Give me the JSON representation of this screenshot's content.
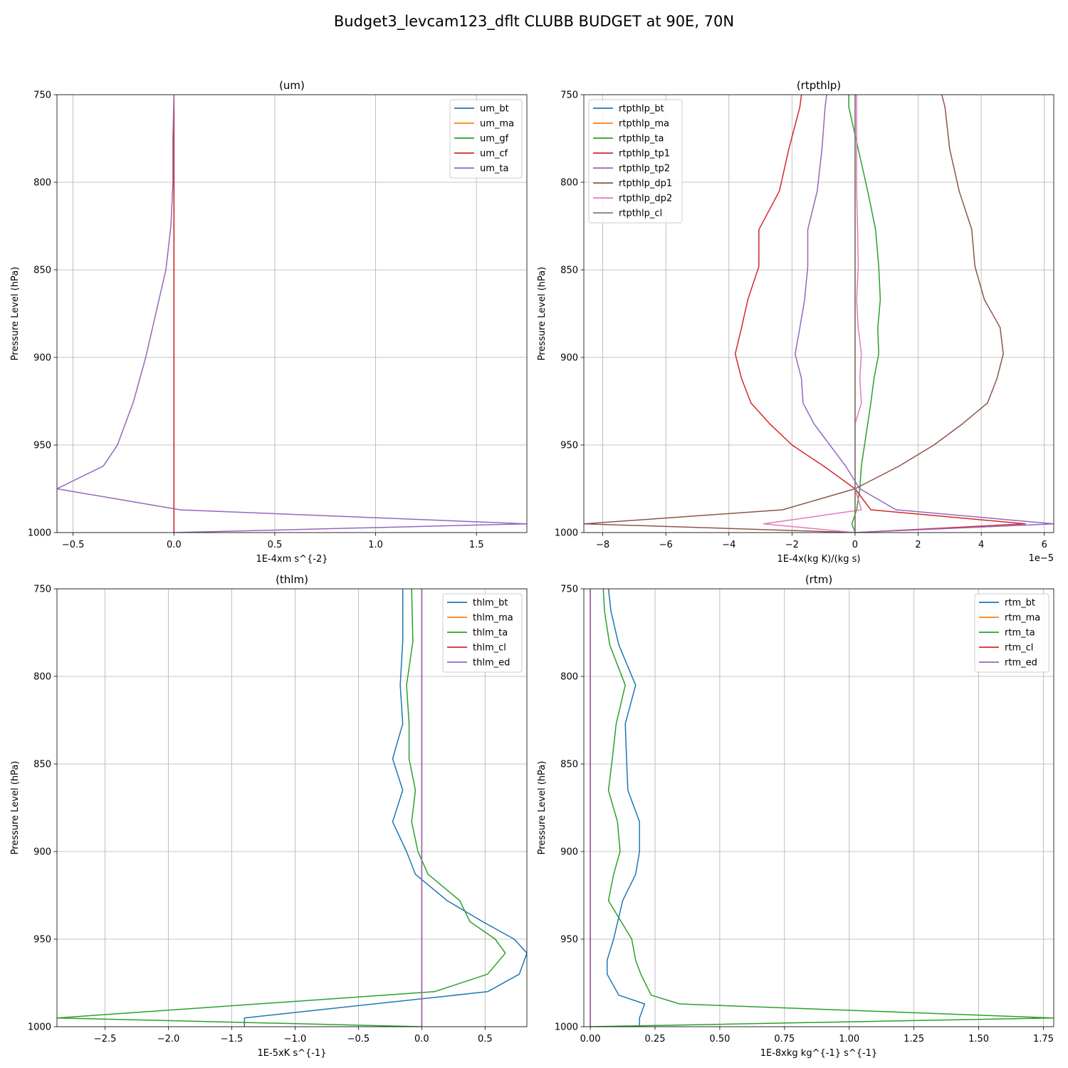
{
  "figure": {
    "suptitle": "Budget3_levcam123_dflt CLUBB BUDGET at 90E, 70N"
  },
  "chart_data": [
    {
      "type": "line",
      "title": "(um)",
      "xlabel": "1E-4xm s^{-2}",
      "ylabel": "Pressure Level (hPa)",
      "x_offset_label": "",
      "xlim": [
        -0.58,
        1.75
      ],
      "ylim": [
        1000,
        750
      ],
      "y_inverted": true,
      "grid": true,
      "legend_position": "upper right",
      "xticks": [
        -0.5,
        0.0,
        0.5,
        1.0,
        1.5
      ],
      "xtick_labels": [
        "−0.5",
        "0.0",
        "0.5",
        "1.0",
        "1.5"
      ],
      "yticks": [
        750,
        800,
        850,
        900,
        950,
        1000
      ],
      "ytick_labels": [
        "750",
        "800",
        "850",
        "900",
        "950",
        "1000"
      ],
      "levels": [
        750,
        775,
        800,
        825,
        850,
        875,
        900,
        925,
        950,
        962,
        975,
        987,
        995,
        1000
      ],
      "series": [
        {
          "name": "um_bt",
          "color": "#1f77b4",
          "values": [
            0,
            0,
            0,
            0,
            0,
            0,
            0,
            0,
            0,
            0,
            0,
            0,
            0,
            0
          ]
        },
        {
          "name": "um_ma",
          "color": "#ff7f0e",
          "values": [
            0,
            0,
            0,
            0,
            0,
            0,
            0,
            0,
            0,
            0,
            0,
            0,
            0,
            0
          ]
        },
        {
          "name": "um_gf",
          "color": "#2ca02c",
          "values": [
            0,
            0,
            0,
            0,
            0,
            0,
            0,
            0,
            0,
            0,
            0,
            0,
            0,
            0
          ]
        },
        {
          "name": "um_cf",
          "color": "#d62728",
          "values": [
            0,
            0,
            0,
            0,
            0,
            0,
            0,
            0,
            0,
            0,
            0,
            0,
            0,
            0
          ]
        },
        {
          "name": "um_ta",
          "color": "#9467bd",
          "values": [
            0.0,
            -0.005,
            -0.005,
            -0.015,
            -0.04,
            -0.09,
            -0.14,
            -0.2,
            -0.28,
            -0.35,
            -0.58,
            0.03,
            1.75,
            0.0
          ]
        }
      ]
    },
    {
      "type": "line",
      "title": "(rtpthlp)",
      "xlabel": "1E-4x(kg K)/(kg s)",
      "ylabel": "Pressure Level (hPa)",
      "x_offset_label": "1e−5",
      "xlim": [
        -8.6,
        6.3
      ],
      "ylim": [
        1000,
        750
      ],
      "y_inverted": true,
      "grid": true,
      "legend_position": "upper left",
      "xticks": [
        -8,
        -6,
        -4,
        -2,
        0,
        2,
        4,
        6
      ],
      "xtick_labels": [
        "−8",
        "−6",
        "−4",
        "−2",
        "0",
        "2",
        "4",
        "6"
      ],
      "yticks": [
        750,
        800,
        850,
        900,
        950,
        1000
      ],
      "ytick_labels": [
        "750",
        "800",
        "850",
        "900",
        "950",
        "1000"
      ],
      "levels": [
        750,
        757,
        781,
        805,
        827,
        848,
        867,
        883,
        898,
        912,
        926,
        938,
        950,
        962,
        975,
        987,
        995,
        1000
      ],
      "series": [
        {
          "name": "rtpthlp_bt",
          "color": "#1f77b4",
          "values": [
            0.0,
            0.0,
            0.0,
            0.0,
            0.0,
            0.0,
            0.0,
            0.0,
            0.0,
            0.0,
            0.0,
            0.0,
            0.0,
            0.0,
            0.0,
            0.0,
            0.0,
            0.0
          ]
        },
        {
          "name": "rtpthlp_ma",
          "color": "#ff7f0e",
          "values": [
            0.0,
            0.0,
            0.0,
            0.0,
            0.0,
            0.0,
            0.0,
            0.0,
            0.0,
            0.0,
            0.0,
            0.0,
            0.0,
            0.0,
            0.0,
            0.0,
            0.0,
            0.0
          ]
        },
        {
          "name": "rtpthlp_ta",
          "color": "#2ca02c",
          "values": [
            -0.2,
            -0.2,
            0.1,
            0.4,
            0.65,
            0.75,
            0.8,
            0.72,
            0.75,
            0.6,
            0.5,
            0.4,
            0.3,
            0.2,
            0.15,
            0.05,
            -0.1,
            0.0
          ]
        },
        {
          "name": "rtpthlp_tp1",
          "color": "#d62728",
          "values": [
            -1.7,
            -1.75,
            -2.1,
            -2.4,
            -3.05,
            -3.05,
            -3.4,
            -3.6,
            -3.8,
            -3.6,
            -3.3,
            -2.7,
            -2.0,
            -1.0,
            0.0,
            0.5,
            5.4,
            0.0
          ]
        },
        {
          "name": "rtpthlp_tp2",
          "color": "#9467bd",
          "values": [
            -0.9,
            -0.95,
            -1.05,
            -1.2,
            -1.5,
            -1.5,
            -1.6,
            -1.75,
            -1.9,
            -1.7,
            -1.65,
            -1.3,
            -0.8,
            -0.3,
            0.15,
            1.3,
            6.3,
            0.0
          ]
        },
        {
          "name": "rtpthlp_dp1",
          "color": "#8c564b",
          "values": [
            2.75,
            2.85,
            3.0,
            3.3,
            3.7,
            3.8,
            4.1,
            4.6,
            4.7,
            4.5,
            4.2,
            3.4,
            2.5,
            1.4,
            0.0,
            -2.3,
            -8.6,
            0.0
          ]
        },
        {
          "name": "rtpthlp_dp2",
          "color": "#e377c2",
          "values": [
            0.05,
            0.05,
            0.05,
            0.05,
            0.08,
            0.1,
            0.05,
            0.1,
            0.2,
            0.15,
            0.2,
            0.0,
            0.0,
            0.0,
            0.0,
            0.2,
            -2.9,
            0.0
          ]
        },
        {
          "name": "rtpthlp_cl",
          "color": "#7f7f7f",
          "values": [
            0.0,
            0.0,
            0.0,
            0.0,
            0.0,
            0.0,
            0.0,
            0.0,
            0.0,
            0.0,
            0.0,
            0.0,
            0.0,
            0.0,
            0.0,
            0.0,
            0.0,
            0.0
          ]
        }
      ]
    },
    {
      "type": "line",
      "title": "(thlm)",
      "xlabel": "1E-5xK s^{-1}",
      "ylabel": "Pressure Level (hPa)",
      "x_offset_label": "",
      "xlim": [
        -2.88,
        0.83
      ],
      "ylim": [
        1000,
        750
      ],
      "y_inverted": true,
      "grid": true,
      "legend_position": "upper right",
      "xticks": [
        -2.5,
        -2.0,
        -1.5,
        -1.0,
        -0.5,
        0.0,
        0.5
      ],
      "xtick_labels": [
        "−2.5",
        "−2.0",
        "−1.5",
        "−1.0",
        "−0.5",
        "0.0",
        "0.5"
      ],
      "yticks": [
        750,
        800,
        850,
        900,
        950,
        1000
      ],
      "ytick_labels": [
        "750",
        "800",
        "850",
        "900",
        "950",
        "1000"
      ],
      "levels": [
        750,
        780,
        805,
        827,
        847,
        865,
        883,
        900,
        913,
        928,
        940,
        950,
        958,
        970,
        980,
        995,
        1000
      ],
      "series": [
        {
          "name": "thlm_bt",
          "color": "#1f77b4",
          "values": [
            -0.15,
            -0.15,
            -0.17,
            -0.15,
            -0.23,
            -0.15,
            -0.23,
            -0.12,
            -0.05,
            0.2,
            0.48,
            0.73,
            0.83,
            0.77,
            0.52,
            -1.4,
            -1.4
          ]
        },
        {
          "name": "thlm_ma",
          "color": "#ff7f0e",
          "values": [
            0,
            0,
            0,
            0,
            0,
            0,
            0,
            0,
            0,
            0,
            0,
            0,
            0,
            0,
            0,
            0,
            0
          ]
        },
        {
          "name": "thlm_ta",
          "color": "#2ca02c",
          "values": [
            -0.08,
            -0.07,
            -0.12,
            -0.1,
            -0.1,
            -0.05,
            -0.08,
            -0.03,
            0.05,
            0.3,
            0.38,
            0.58,
            0.66,
            0.52,
            0.1,
            -2.88,
            0.0
          ]
        },
        {
          "name": "thlm_cl",
          "color": "#d62728",
          "values": [
            0,
            0,
            0,
            0,
            0,
            0,
            0,
            0,
            0,
            0,
            0,
            0,
            0,
            0,
            0,
            0,
            0
          ]
        },
        {
          "name": "thlm_ed",
          "color": "#9467bd",
          "values": [
            0,
            0,
            0,
            0,
            0,
            0,
            0,
            0,
            0,
            0,
            0,
            0,
            0,
            0,
            0,
            0,
            0
          ]
        }
      ]
    },
    {
      "type": "line",
      "title": "(rtm)",
      "xlabel": "1E-8xkg kg^{-1} s^{-1}",
      "ylabel": "Pressure Level (hPa)",
      "x_offset_label": "",
      "xlim": [
        -0.025,
        1.79
      ],
      "ylim": [
        1000,
        750
      ],
      "y_inverted": true,
      "grid": true,
      "legend_position": "upper right",
      "xticks": [
        0.0,
        0.25,
        0.5,
        0.75,
        1.0,
        1.25,
        1.5,
        1.75
      ],
      "xtick_labels": [
        "0.00",
        "0.25",
        "0.50",
        "0.75",
        "1.00",
        "1.25",
        "1.50",
        "1.75"
      ],
      "yticks": [
        750,
        800,
        850,
        900,
        950,
        1000
      ],
      "ytick_labels": [
        "750",
        "800",
        "850",
        "900",
        "950",
        "1000"
      ],
      "levels": [
        750,
        763,
        782,
        805,
        827,
        847,
        865,
        883,
        900,
        913,
        928,
        950,
        962,
        970,
        982,
        987,
        995,
        1000
      ],
      "series": [
        {
          "name": "rtm_bt",
          "color": "#1f77b4",
          "values": [
            0.07,
            0.08,
            0.11,
            0.175,
            0.135,
            0.14,
            0.145,
            0.19,
            0.19,
            0.175,
            0.125,
            0.09,
            0.065,
            0.065,
            0.11,
            0.21,
            0.19,
            0.19
          ]
        },
        {
          "name": "rtm_ma",
          "color": "#ff7f0e",
          "values": [
            0,
            0,
            0,
            0,
            0,
            0,
            0,
            0,
            0,
            0,
            0,
            0,
            0,
            0,
            0,
            0,
            0,
            0
          ]
        },
        {
          "name": "rtm_ta",
          "color": "#2ca02c",
          "values": [
            0.05,
            0.055,
            0.075,
            0.135,
            0.1,
            0.085,
            0.07,
            0.105,
            0.115,
            0.09,
            0.07,
            0.16,
            0.175,
            0.195,
            0.235,
            0.345,
            1.79,
            0.0
          ]
        },
        {
          "name": "rtm_cl",
          "color": "#d62728",
          "values": [
            0,
            0,
            0,
            0,
            0,
            0,
            0,
            0,
            0,
            0,
            0,
            0,
            0,
            0,
            0,
            0,
            0,
            0
          ]
        },
        {
          "name": "rtm_ed",
          "color": "#9467bd",
          "values": [
            0,
            0,
            0,
            0,
            0,
            0,
            0,
            0,
            0,
            0,
            0,
            0,
            0,
            0,
            0,
            0,
            0,
            0
          ]
        }
      ]
    }
  ]
}
